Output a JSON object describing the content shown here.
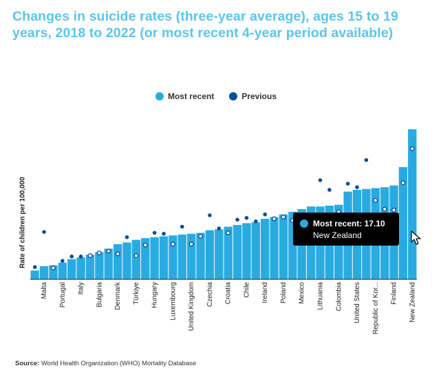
{
  "title": "Changes in suicide rates (three-year average), ages 15 to 19 years, 2018 to 2022 (or most recent 4-year period available)",
  "colors": {
    "title": "#5bc5ec",
    "most_recent": "#29abe2",
    "previous": "#0b4f95"
  },
  "legend": {
    "most_recent": "Most recent",
    "previous": "Previous"
  },
  "tooltip": {
    "label": "Most recent: 17.10",
    "country": "New Zealand"
  },
  "source": {
    "label": "Source:",
    "text": "World Health Organization (WHO) Mortality Database"
  },
  "chart_data": {
    "type": "bar",
    "ylabel": "Rate of children per 100,000",
    "ylim": [
      0,
      17.4
    ],
    "legend_position": "top-center",
    "grid": false,
    "categories": [
      "",
      "Malta",
      "",
      "Portugal",
      "",
      "Italy",
      "",
      "Bulgaria",
      "",
      "Denmark",
      "",
      "Türkiye",
      "",
      "Hungary",
      "",
      "Luxembourg",
      "",
      "United Kingdom",
      "",
      "Czechia",
      "",
      "Croatia",
      "",
      "Chile",
      "",
      "Ireland",
      "",
      "Poland",
      "",
      "Mexico",
      "",
      "Lithuania",
      "",
      "Colombia",
      "",
      "United States",
      "",
      "Republic of Kor...",
      "",
      "Finland",
      "",
      "New Zealand"
    ],
    "series": [
      {
        "name": "Most recent",
        "values": [
          1.0,
          1.5,
          1.6,
          1.9,
          2.3,
          2.5,
          2.8,
          3.1,
          3.5,
          4.0,
          4.2,
          4.5,
          4.7,
          4.8,
          4.9,
          5.0,
          5.1,
          5.2,
          5.3,
          5.6,
          5.7,
          6.0,
          6.2,
          6.4,
          6.5,
          6.9,
          7.1,
          7.4,
          7.7,
          8.0,
          8.3,
          8.3,
          8.4,
          8.5,
          10.0,
          10.2,
          10.3,
          10.4,
          10.5,
          10.7,
          12.8,
          17.1
        ]
      },
      {
        "name": "Previous",
        "values": [
          1.4,
          5.4,
          1.3,
          2.1,
          2.6,
          2.6,
          2.7,
          3.0,
          3.2,
          2.9,
          4.8,
          2.7,
          3.9,
          5.3,
          5.2,
          4.0,
          6.0,
          4.0,
          4.9,
          7.3,
          5.8,
          5.3,
          6.8,
          7.0,
          6.6,
          7.4,
          6.9,
          7.1,
          6.7,
          7.2,
          6.8,
          11.3,
          10.2,
          7.7,
          10.9,
          10.5,
          13.6,
          9.0,
          8.0,
          7.9,
          11.0,
          14.9
        ]
      }
    ]
  }
}
